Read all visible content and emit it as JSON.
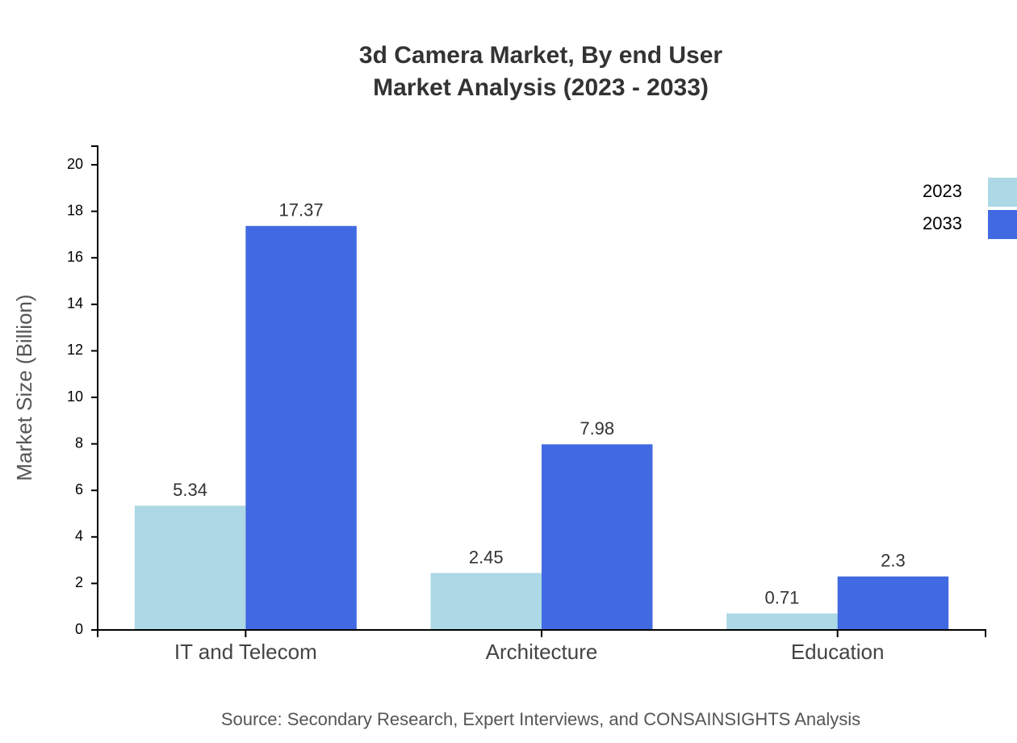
{
  "chart_data": {
    "type": "bar",
    "title": "3d Camera Market, By end User",
    "subtitle": "Market Analysis (2023 - 2033)",
    "y_label": "Market Size (Billion)",
    "source": "Source: Secondary Research, Expert Interviews, and CONSAINSIGHTS Analysis",
    "categories": [
      "IT and Telecom",
      "Architecture",
      "Education"
    ],
    "series": [
      {
        "name": "2023",
        "color": "#add8e6",
        "values": [
          5.34,
          2.45,
          0.71
        ]
      },
      {
        "name": "2033",
        "color": "#4169e1",
        "values": [
          17.37,
          7.98,
          2.3
        ]
      }
    ],
    "ylim": [
      0,
      20.8
    ],
    "yticks": [
      0,
      2,
      4,
      6,
      8,
      10,
      12,
      14,
      16,
      18,
      20
    ],
    "legend": "top-right"
  }
}
